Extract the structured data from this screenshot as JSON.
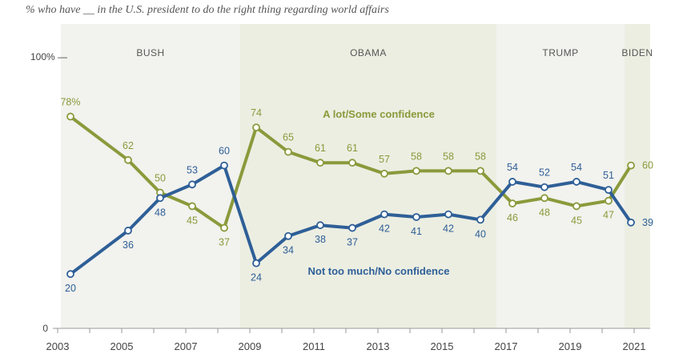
{
  "chart_data": {
    "type": "line",
    "subtitle": "% who have __ in the U.S. president to do the right thing regarding world affairs",
    "x": [
      2003.4,
      2005.2,
      2006.2,
      2007.2,
      2008.2,
      2009.2,
      2010.2,
      2011.2,
      2012.2,
      2013.2,
      2014.2,
      2015.2,
      2016.2,
      2017.2,
      2018.2,
      2019.2,
      2020.2,
      2020.9
    ],
    "value_labels": [
      "",
      "",
      "",
      "",
      "",
      "",
      "",
      "",
      "",
      "",
      "",
      "",
      "",
      "",
      "",
      "",
      "",
      ""
    ],
    "series": [
      {
        "name": "A lot/Some confidence",
        "color": "#8a9a3b",
        "values": [
          78,
          62,
          50,
          45,
          37,
          74,
          65,
          61,
          61,
          57,
          58,
          58,
          58,
          46,
          48,
          45,
          47,
          60
        ],
        "labels": [
          "78%",
          "62",
          "50",
          "45",
          "37",
          "74",
          "65",
          "61",
          "61",
          "57",
          "58",
          "58",
          "58",
          "46",
          "48",
          "45",
          "47",
          "60"
        ]
      },
      {
        "name": "Not too much/No confidence",
        "color": "#2e5f97",
        "values": [
          20,
          36,
          48,
          53,
          60,
          24,
          34,
          38,
          37,
          42,
          41,
          42,
          40,
          54,
          52,
          54,
          51,
          39
        ],
        "labels": [
          "20",
          "36",
          "48",
          "53",
          "60",
          "24",
          "34",
          "38",
          "37",
          "42",
          "41",
          "42",
          "40",
          "54",
          "52",
          "54",
          "51",
          "39"
        ]
      }
    ],
    "eras": [
      {
        "name": "BUSH",
        "start": 2003.1,
        "end": 2008.7,
        "color": "#f2f2ee"
      },
      {
        "name": "OBAMA",
        "start": 2008.7,
        "end": 2016.7,
        "color": "#eceee2"
      },
      {
        "name": "TRUMP",
        "start": 2016.7,
        "end": 2020.7,
        "color": "#f2f2ee"
      },
      {
        "name": "BIDEN",
        "start": 2020.7,
        "end": 2021.5,
        "color": "#eceee2"
      }
    ],
    "x_ticks": [
      "2003",
      "2005",
      "2007",
      "2009",
      "2011",
      "2013",
      "2015",
      "2017",
      "2019",
      "2021"
    ],
    "y_ticks": [
      "0",
      "100% —"
    ],
    "ylim": [
      0,
      100
    ],
    "xlim": [
      2002.6,
      2021.7
    ],
    "grid": false
  }
}
